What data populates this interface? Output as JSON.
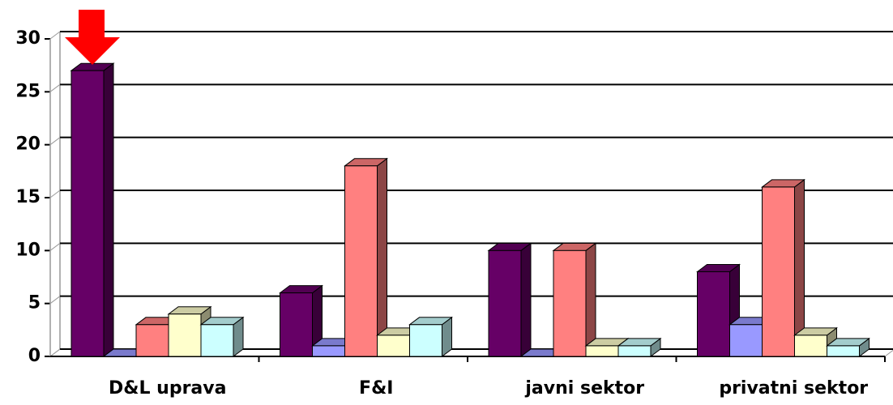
{
  "chart_data": {
    "type": "bar3d",
    "categories": [
      "D&L uprava",
      "F&I",
      "javni sektor",
      "privatni sektor"
    ],
    "series": [
      {
        "color": "#660066",
        "values": [
          27,
          6,
          10,
          8
        ]
      },
      {
        "color": "#9999ff",
        "values": [
          0,
          1,
          0,
          3
        ]
      },
      {
        "color": "#ff8080",
        "values": [
          3,
          18,
          10,
          16
        ]
      },
      {
        "color": "#ffffcc",
        "values": [
          4,
          2,
          1,
          2
        ]
      },
      {
        "color": "#ccffff",
        "values": [
          3,
          3,
          1,
          1
        ]
      }
    ],
    "ylim": [
      0,
      30
    ],
    "yticks": [
      0,
      5,
      10,
      15,
      20,
      25,
      30
    ],
    "grid": true
  }
}
